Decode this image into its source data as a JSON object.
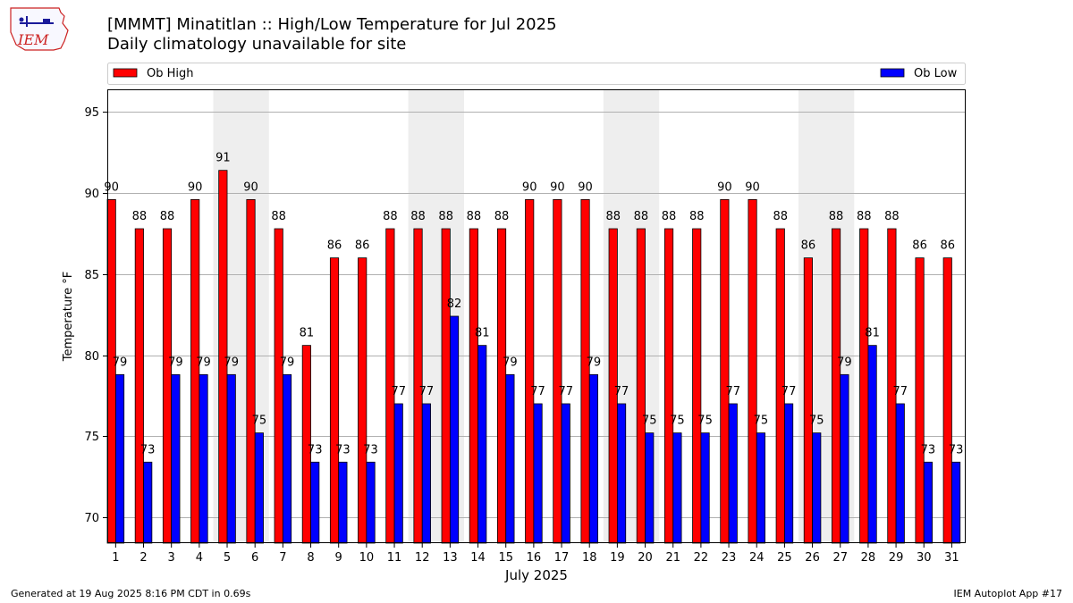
{
  "header": {
    "title": "[MMMT] Minatitlan :: High/Low Temperature for Jul 2025",
    "subtitle": "Daily climatology unavailable for site",
    "logo_text": "IEM"
  },
  "footer": {
    "generated": "Generated at 19 Aug 2025 8:16 PM CDT in 0.69s",
    "app": "IEM Autoplot App #17"
  },
  "colors": {
    "high": "#ff0000",
    "low": "#0000ff",
    "weekend_shade": "#eeeeee",
    "logo": "#cc2222"
  },
  "chart_data": {
    "type": "bar",
    "xlabel": "July 2025",
    "ylabel": "Temperature °F",
    "ylim": [
      68.4,
      96.4
    ],
    "yticks": [
      70,
      75,
      80,
      85,
      90,
      95
    ],
    "grid": true,
    "legend": "top",
    "categories": [
      "1",
      "2",
      "3",
      "4",
      "5",
      "6",
      "7",
      "8",
      "9",
      "10",
      "11",
      "12",
      "13",
      "14",
      "15",
      "16",
      "17",
      "18",
      "19",
      "20",
      "21",
      "22",
      "23",
      "24",
      "25",
      "26",
      "27",
      "28",
      "29",
      "30",
      "31"
    ],
    "shaded_days": [
      [
        "5",
        "6"
      ],
      [
        "12",
        "13"
      ],
      [
        "19",
        "20"
      ],
      [
        "26",
        "27"
      ]
    ],
    "series": [
      {
        "name": "Ob High",
        "color": "#ff0000",
        "values": [
          89.6,
          87.8,
          87.8,
          89.6,
          91.4,
          89.6,
          87.8,
          80.6,
          86.0,
          86.0,
          87.8,
          87.8,
          87.8,
          87.8,
          87.8,
          89.6,
          89.6,
          89.6,
          87.8,
          87.8,
          87.8,
          87.8,
          89.6,
          89.6,
          87.8,
          86.0,
          87.8,
          87.8,
          87.8,
          86.0,
          86.0
        ],
        "labels": [
          "90",
          "88",
          "88",
          "90",
          "91",
          "90",
          "88",
          "81",
          "86",
          "86",
          "88",
          "88",
          "88",
          "88",
          "88",
          "90",
          "90",
          "90",
          "88",
          "88",
          "88",
          "88",
          "90",
          "90",
          "88",
          "86",
          "88",
          "88",
          "88",
          "86",
          "86"
        ]
      },
      {
        "name": "Ob Low",
        "color": "#0000ff",
        "values": [
          78.8,
          73.4,
          78.8,
          78.8,
          78.8,
          75.2,
          78.8,
          73.4,
          73.4,
          73.4,
          77.0,
          77.0,
          82.4,
          80.6,
          78.8,
          77.0,
          77.0,
          78.8,
          77.0,
          75.2,
          75.2,
          75.2,
          77.0,
          75.2,
          77.0,
          75.2,
          78.8,
          80.6,
          77.0,
          73.4,
          73.4
        ],
        "labels": [
          "79",
          "73",
          "79",
          "79",
          "79",
          "75",
          "79",
          "73",
          "73",
          "73",
          "77",
          "77",
          "82",
          "81",
          "79",
          "77",
          "77",
          "79",
          "77",
          "75",
          "75",
          "75",
          "77",
          "75",
          "77",
          "75",
          "79",
          "81",
          "77",
          "73",
          "73"
        ]
      }
    ]
  }
}
